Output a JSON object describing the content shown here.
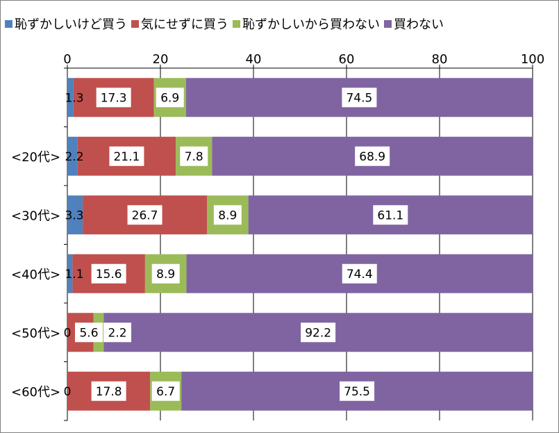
{
  "chart_data": {
    "type": "bar",
    "stacked": true,
    "orientation": "horizontal",
    "categories": [
      "",
      "<20代>",
      "<30代>",
      "<40代>",
      "<50代>",
      "<60代>"
    ],
    "series": [
      {
        "name": "恥ずかしいけど買う",
        "color": "#4f81bd",
        "values": [
          1.3,
          2.2,
          3.3,
          1.1,
          0,
          0
        ]
      },
      {
        "name": "気にせずに買う",
        "color": "#c0504d",
        "values": [
          17.3,
          21.1,
          26.7,
          15.6,
          5.6,
          17.8
        ]
      },
      {
        "name": "恥ずかしいから買わない",
        "color": "#9bbb59",
        "values": [
          6.9,
          7.8,
          8.9,
          8.9,
          2.2,
          6.7
        ]
      },
      {
        "name": "買わない",
        "color": "#8064a2",
        "values": [
          74.5,
          68.9,
          61.1,
          74.4,
          92.2,
          75.5
        ]
      }
    ],
    "data_labels": [
      [
        "1.3",
        "17.3",
        "6.9",
        "74.5"
      ],
      [
        "2.2",
        "21.1",
        "7.8",
        "68.9"
      ],
      [
        "3.3",
        "26.7",
        "8.9",
        "61.1"
      ],
      [
        "1.1",
        "15.6",
        "8.9",
        "74.4"
      ],
      [
        "0",
        "5.6",
        "2.2",
        "92.2"
      ],
      [
        "0",
        "17.8",
        "6.7",
        "75.5"
      ]
    ],
    "xlim": [
      0,
      100
    ],
    "xticks": [
      0,
      20,
      40,
      60,
      80,
      100
    ],
    "x_tick_labels": [
      "0",
      "20",
      "40",
      "60",
      "80",
      "100"
    ],
    "x_axis_position": "top",
    "grid": true,
    "legend": "top"
  }
}
